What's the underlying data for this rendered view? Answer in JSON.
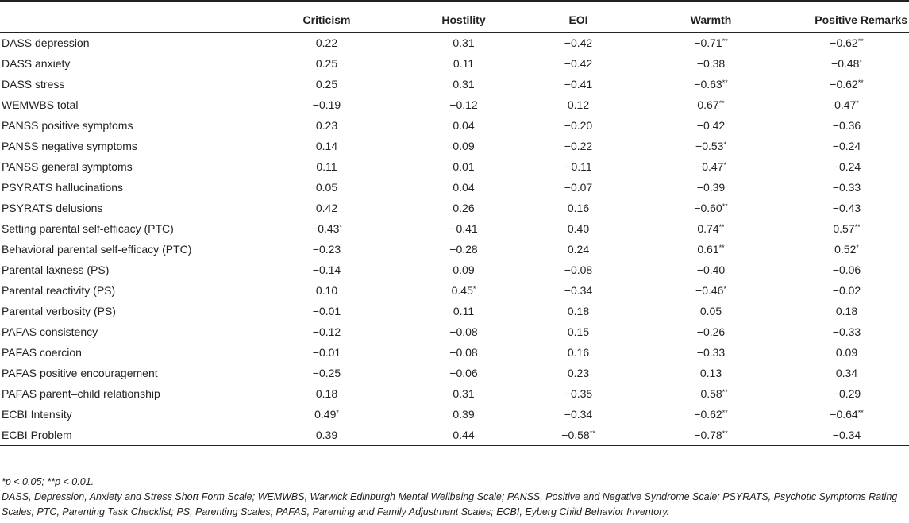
{
  "table": {
    "columns": [
      "",
      "Criticism",
      "Hostility",
      "EOI",
      "Warmth",
      "Positive Remarks"
    ],
    "rows": [
      {
        "label": "DASS depression",
        "cells": [
          [
            "0.22",
            ""
          ],
          [
            "0.31",
            ""
          ],
          [
            "−0.42",
            ""
          ],
          [
            "−0.71",
            "**"
          ],
          [
            "−0.62",
            "**"
          ]
        ]
      },
      {
        "label": "DASS anxiety",
        "cells": [
          [
            "0.25",
            ""
          ],
          [
            "0.11",
            ""
          ],
          [
            "−0.42",
            ""
          ],
          [
            "−0.38",
            ""
          ],
          [
            "−0.48",
            "*"
          ]
        ]
      },
      {
        "label": "DASS stress",
        "cells": [
          [
            "0.25",
            ""
          ],
          [
            "0.31",
            ""
          ],
          [
            "−0.41",
            ""
          ],
          [
            "−0.63",
            "**"
          ],
          [
            "−0.62",
            "**"
          ]
        ]
      },
      {
        "label": "WEMWBS total",
        "cells": [
          [
            "−0.19",
            ""
          ],
          [
            "−0.12",
            ""
          ],
          [
            "0.12",
            ""
          ],
          [
            "0.67",
            "**"
          ],
          [
            "0.47",
            "*"
          ]
        ]
      },
      {
        "label": "PANSS positive symptoms",
        "cells": [
          [
            "0.23",
            ""
          ],
          [
            "0.04",
            ""
          ],
          [
            "−0.20",
            ""
          ],
          [
            "−0.42",
            ""
          ],
          [
            "−0.36",
            ""
          ]
        ]
      },
      {
        "label": "PANSS negative symptoms",
        "cells": [
          [
            "0.14",
            ""
          ],
          [
            "0.09",
            ""
          ],
          [
            "−0.22",
            ""
          ],
          [
            "−0.53",
            "*"
          ],
          [
            "−0.24",
            ""
          ]
        ]
      },
      {
        "label": "PANSS general symptoms",
        "cells": [
          [
            "0.11",
            ""
          ],
          [
            "0.01",
            ""
          ],
          [
            "−0.11",
            ""
          ],
          [
            "−0.47",
            "*"
          ],
          [
            "−0.24",
            ""
          ]
        ]
      },
      {
        "label": "PSYRATS hallucinations",
        "cells": [
          [
            "0.05",
            ""
          ],
          [
            "0.04",
            ""
          ],
          [
            "−0.07",
            ""
          ],
          [
            "−0.39",
            ""
          ],
          [
            "−0.33",
            ""
          ]
        ]
      },
      {
        "label": "PSYRATS delusions",
        "cells": [
          [
            "0.42",
            ""
          ],
          [
            "0.26",
            ""
          ],
          [
            "0.16",
            ""
          ],
          [
            "−0.60",
            "**"
          ],
          [
            "−0.43",
            ""
          ]
        ]
      },
      {
        "label": "Setting parental self-efficacy (PTC)",
        "cells": [
          [
            "−0.43",
            "*"
          ],
          [
            "−0.41",
            ""
          ],
          [
            "0.40",
            ""
          ],
          [
            "0.74",
            "**"
          ],
          [
            "0.57",
            "**"
          ]
        ]
      },
      {
        "label": "Behavioral parental self-efficacy (PTC)",
        "cells": [
          [
            "−0.23",
            ""
          ],
          [
            "−0.28",
            ""
          ],
          [
            "0.24",
            ""
          ],
          [
            "0.61",
            "**"
          ],
          [
            "0.52",
            "*"
          ]
        ]
      },
      {
        "label": "Parental laxness (PS)",
        "cells": [
          [
            "−0.14",
            ""
          ],
          [
            "0.09",
            ""
          ],
          [
            "−0.08",
            ""
          ],
          [
            "−0.40",
            ""
          ],
          [
            "−0.06",
            ""
          ]
        ]
      },
      {
        "label": "Parental reactivity (PS)",
        "cells": [
          [
            "0.10",
            ""
          ],
          [
            "0.45",
            "*"
          ],
          [
            "−0.34",
            ""
          ],
          [
            "−0.46",
            "*"
          ],
          [
            "−0.02",
            ""
          ]
        ]
      },
      {
        "label": "Parental verbosity (PS)",
        "cells": [
          [
            "−0.01",
            ""
          ],
          [
            "0.11",
            ""
          ],
          [
            "0.18",
            ""
          ],
          [
            "0.05",
            ""
          ],
          [
            "0.18",
            ""
          ]
        ]
      },
      {
        "label": "PAFAS consistency",
        "cells": [
          [
            "−0.12",
            ""
          ],
          [
            "−0.08",
            ""
          ],
          [
            "0.15",
            ""
          ],
          [
            "−0.26",
            ""
          ],
          [
            "−0.33",
            ""
          ]
        ]
      },
      {
        "label": "PAFAS coercion",
        "cells": [
          [
            "−0.01",
            ""
          ],
          [
            "−0.08",
            ""
          ],
          [
            "0.16",
            ""
          ],
          [
            "−0.33",
            ""
          ],
          [
            "0.09",
            ""
          ]
        ]
      },
      {
        "label": "PAFAS positive encouragement",
        "cells": [
          [
            "−0.25",
            ""
          ],
          [
            "−0.06",
            ""
          ],
          [
            "0.23",
            ""
          ],
          [
            "0.13",
            ""
          ],
          [
            "0.34",
            ""
          ]
        ]
      },
      {
        "label": "PAFAS parent–child relationship",
        "cells": [
          [
            "0.18",
            ""
          ],
          [
            "0.31",
            ""
          ],
          [
            "−0.35",
            ""
          ],
          [
            "−0.58",
            "**"
          ],
          [
            "−0.29",
            ""
          ]
        ]
      },
      {
        "label": "ECBI Intensity",
        "cells": [
          [
            "0.49",
            "*"
          ],
          [
            "0.39",
            ""
          ],
          [
            "−0.34",
            ""
          ],
          [
            "−0.62",
            "**"
          ],
          [
            "−0.64",
            "**"
          ]
        ]
      },
      {
        "label": "ECBI Problem",
        "cells": [
          [
            "0.39",
            ""
          ],
          [
            "0.44",
            ""
          ],
          [
            "−0.58",
            "**"
          ],
          [
            "−0.78",
            "**"
          ],
          [
            "−0.34",
            ""
          ]
        ]
      }
    ]
  },
  "footnotes": {
    "significance": "*p < 0.05; **p < 0.01.",
    "abbreviations": "DASS, Depression, Anxiety and Stress Short Form Scale; WEMWBS, Warwick Edinburgh Mental Wellbeing Scale; PANSS, Positive and Negative Syndrome Scale; PSYRATS, Psychotic Symptoms Rating Scales; PTC, Parenting Task Checklist; PS, Parenting Scales; PAFAS, Parenting and Family Adjustment Scales; ECBI, Eyberg Child Behavior Inventory."
  }
}
